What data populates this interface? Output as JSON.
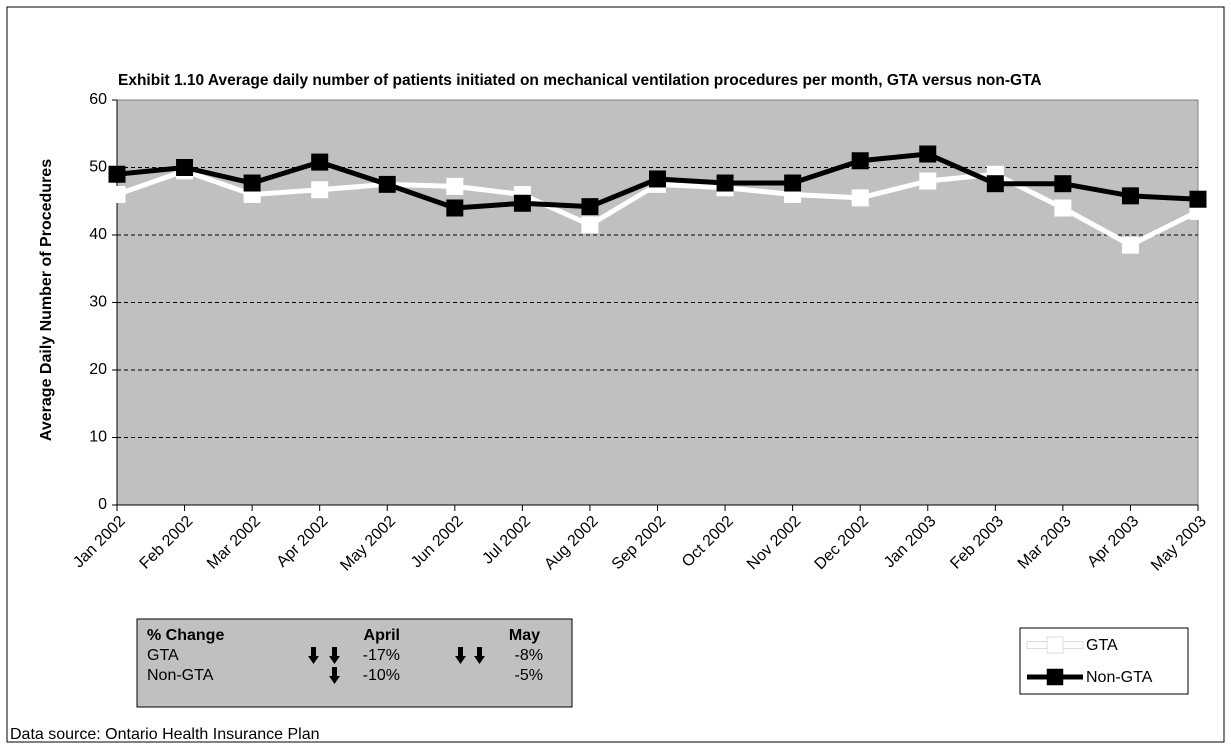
{
  "chart_data": {
    "type": "line",
    "title": "Exhibit 1.10 Average daily number of patients initiated on mechanical ventilation procedures per month, GTA versus non-GTA",
    "y_label": "Average Daily Number of Procedures",
    "categories": [
      "Jan 2002",
      "Feb 2002",
      "Mar 2002",
      "Apr 2002",
      "May 2002",
      "Jun 2002",
      "Jul 2002",
      "Aug 2002",
      "Sep 2002",
      "Oct 2002",
      "Nov 2002",
      "Dec 2002",
      "Jan 2003",
      "Feb 2003",
      "Mar 2003",
      "Apr 2003",
      "May 2003"
    ],
    "series": [
      {
        "name": "GTA",
        "color": "#ffffff",
        "values": [
          46,
          49.5,
          46,
          46.7,
          47.5,
          47.2,
          46,
          41.5,
          47.5,
          47,
          46,
          45.5,
          48,
          49,
          44,
          38.5,
          43.5
        ]
      },
      {
        "name": "Non-GTA",
        "color": "#000000",
        "values": [
          49,
          50,
          47.7,
          50.8,
          47.5,
          44,
          44.7,
          44.2,
          48.3,
          47.7,
          47.7,
          51,
          52,
          47.6,
          47.6,
          45.8,
          45.3
        ]
      }
    ],
    "ylim": [
      0,
      60
    ],
    "yticks": [
      0,
      10,
      20,
      30,
      40,
      50,
      60
    ],
    "grid": true,
    "legend": "bottom-right"
  },
  "change_table": {
    "header": [
      "% Change",
      "April",
      "May"
    ],
    "rows": [
      [
        "GTA",
        "-17%",
        "-8%"
      ],
      [
        "Non-GTA",
        "-10%",
        "-5%"
      ]
    ]
  },
  "source": "Data source: Ontario Health Insurance Plan"
}
